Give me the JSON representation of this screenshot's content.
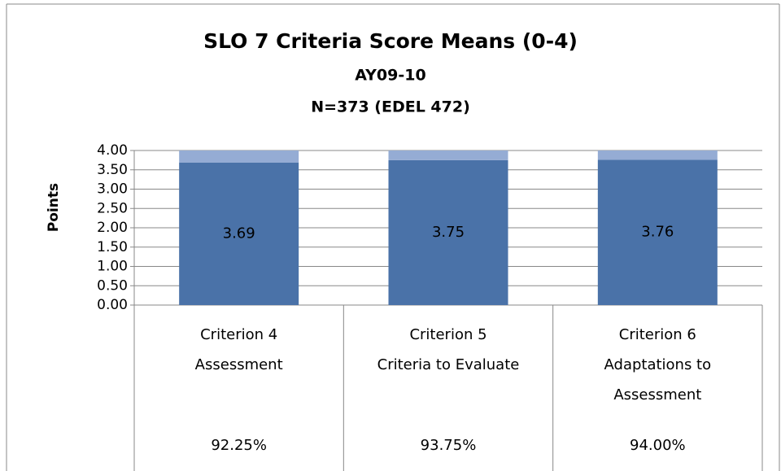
{
  "chart_data": {
    "type": "stacked_bar",
    "title": "SLO 7 Criteria Score Means (0-4)",
    "subtitle": [
      "AY09-10",
      "N=373 (EDEL 472)"
    ],
    "y_label": "Points",
    "categories": [
      [
        "Criterion 4",
        "Assessment"
      ],
      [
        "Criterion 5",
        "Criteria to Evaluate"
      ],
      [
        "Criterion 6",
        "Adaptations to",
        "Assessment"
      ]
    ],
    "percentages": [
      "92.25%",
      "93.75%",
      "94.00%"
    ],
    "series": [
      {
        "color": "#4a72a8",
        "values": [
          3.69,
          3.75,
          3.76
        ],
        "labeled": true
      },
      {
        "color": "#95acd4",
        "values": [
          0.31,
          0.25,
          0.24
        ],
        "labeled": false
      }
    ],
    "ylim": [
      0,
      4
    ],
    "yticks": [
      {
        "value": 0,
        "label": "0.00"
      },
      {
        "value": 0.5,
        "label": "0.50"
      },
      {
        "value": 1,
        "label": "1.00"
      },
      {
        "value": 1.5,
        "label": "1.50"
      },
      {
        "value": 2,
        "label": "2.00"
      },
      {
        "value": 2.5,
        "label": "2.50"
      },
      {
        "value": 3,
        "label": "3.00"
      },
      {
        "value": 3.5,
        "label": "3.50"
      },
      {
        "value": 4,
        "label": "4.00"
      }
    ],
    "grid": true
  }
}
